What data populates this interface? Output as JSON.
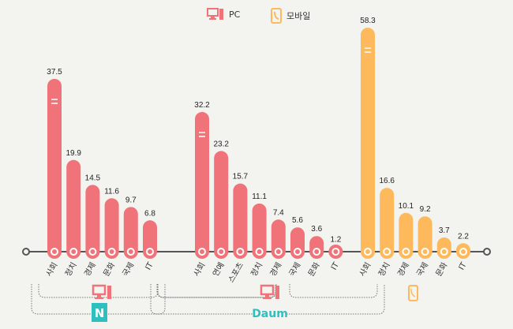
{
  "legend": {
    "pc": "PC",
    "mobile": "모바일"
  },
  "colors": {
    "pc": "#f0737a",
    "mobile": "#fdb95c",
    "naver": "#2fbfbf",
    "daum": "#2fbfbf",
    "axis": "#555555"
  },
  "brands": {
    "naver": "N",
    "daum": "Daum"
  },
  "chart_data": [
    {
      "type": "bar",
      "name": "Naver PC",
      "platform": "pc",
      "categories": [
        "사회",
        "정치",
        "경제",
        "문화",
        "국제",
        "IT"
      ],
      "values": [
        37.5,
        19.9,
        14.5,
        11.6,
        9.7,
        6.8
      ]
    },
    {
      "type": "bar",
      "name": "Daum PC",
      "platform": "pc",
      "categories": [
        "사회",
        "연예",
        "스포츠",
        "정치",
        "경제",
        "국제",
        "문화",
        "IT"
      ],
      "values": [
        32.2,
        23.2,
        15.7,
        11.1,
        7.4,
        5.6,
        3.6,
        1.2
      ]
    },
    {
      "type": "bar",
      "name": "Daum Mobile",
      "platform": "mobile",
      "categories": [
        "사회",
        "정치",
        "경제",
        "국제",
        "문화",
        "IT"
      ],
      "values": [
        58.3,
        16.6,
        10.1,
        9.2,
        3.7,
        2.2
      ]
    }
  ]
}
